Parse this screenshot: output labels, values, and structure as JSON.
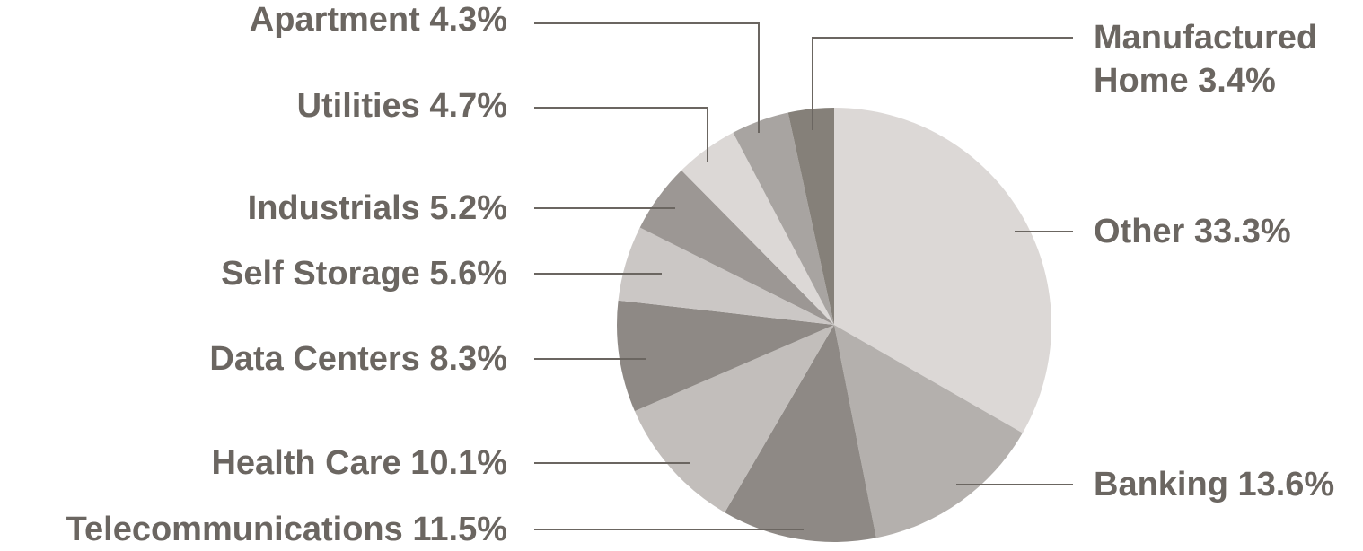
{
  "chart_data": {
    "type": "pie",
    "categories": [
      "Other",
      "Banking",
      "Telecommunications",
      "Health Care",
      "Data Centers",
      "Self Storage",
      "Industrials",
      "Utilities",
      "Apartment",
      "Manufactured Home"
    ],
    "values": [
      33.3,
      13.6,
      11.5,
      10.1,
      8.3,
      5.6,
      5.2,
      4.7,
      4.3,
      3.4
    ],
    "value_labels": [
      "33.3%",
      "13.6%",
      "11.5%",
      "10.1%",
      "8.3%",
      "5.6%",
      "5.2%",
      "4.7%",
      "4.3%",
      "3.4%"
    ],
    "colors": [
      "#dcd8d6",
      "#b4b0ad",
      "#8e8985",
      "#c2bebb",
      "#8e8985",
      "#cbc7c5",
      "#9c9794",
      "#dcd8d6",
      "#a8a4a1",
      "#858079"
    ]
  }
}
